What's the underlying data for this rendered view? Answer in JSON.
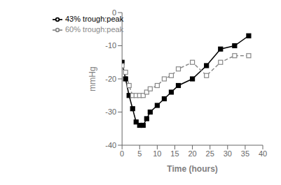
{
  "chart_data": {
    "type": "line",
    "xlabel": "Time (hours)",
    "ylabel": "mmHg",
    "x": [
      0,
      1,
      2,
      3,
      4,
      5,
      6,
      7,
      8,
      10,
      12,
      14,
      16,
      20,
      24,
      28,
      32,
      36
    ],
    "series": [
      {
        "name": "43% trough:peak",
        "color": "black",
        "values": [
          -15,
          -20,
          -25,
          -29,
          -33,
          -34,
          -34,
          -32,
          -30,
          -28,
          -26,
          -24,
          -22,
          -20,
          -16,
          -11,
          -10,
          -7
        ],
        "marker": "square",
        "line_style": "solid"
      },
      {
        "name": "60% trough:peak",
        "color": "#888888",
        "values": [
          -16,
          -18,
          -22,
          -25,
          -25,
          -25,
          -25,
          -24,
          -23,
          -22,
          -20,
          -19,
          -17,
          -15,
          -19,
          -15,
          -13,
          -13
        ],
        "marker": "open-square",
        "line_style": "dashed"
      }
    ],
    "xlim": [
      0,
      40
    ],
    "ylim": [
      -40,
      0
    ],
    "xticks": [
      0,
      5,
      10,
      15,
      20,
      25,
      30,
      35,
      40
    ],
    "yticks": [
      0,
      -10,
      -20,
      -30,
      -40
    ],
    "grid": false,
    "legend": "upper left"
  }
}
